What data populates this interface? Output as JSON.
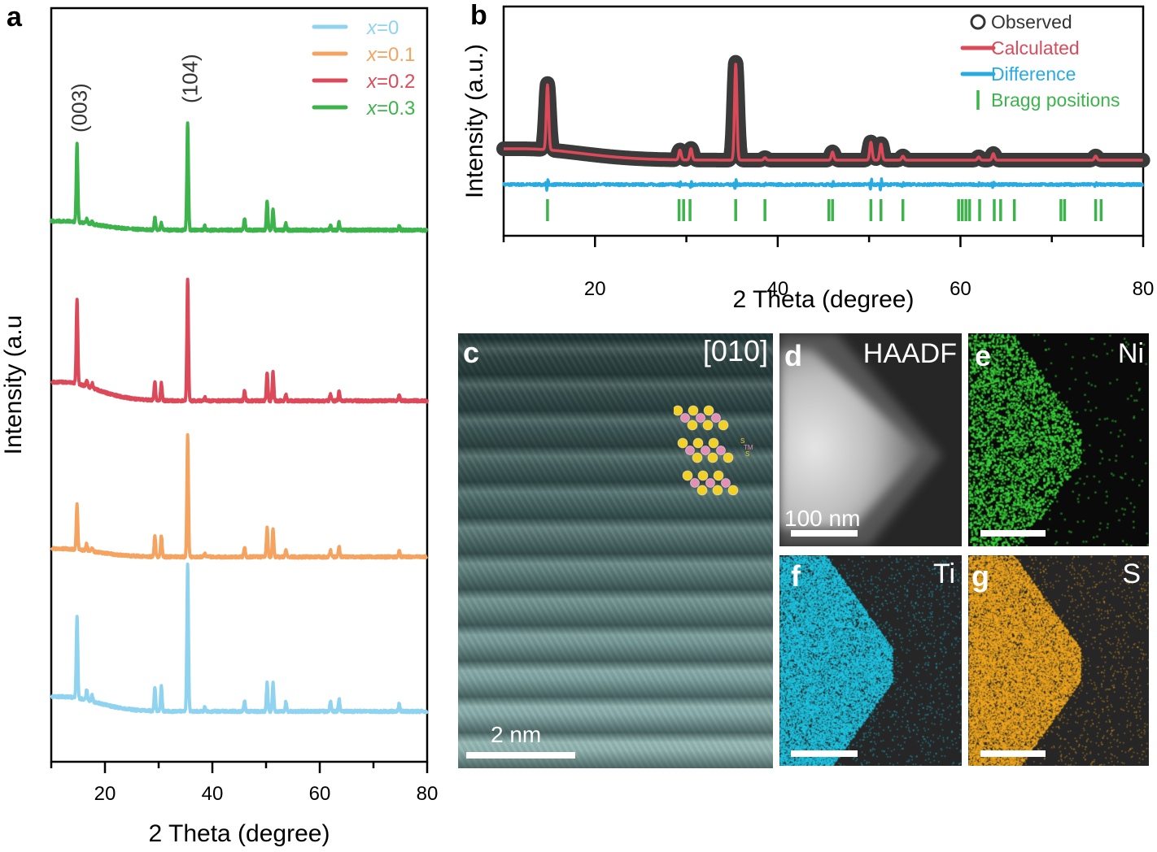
{
  "figure": {
    "panel_letters": {
      "a": "a",
      "b": "b",
      "c": "c",
      "d": "d",
      "e": "e",
      "f": "f",
      "g": "g"
    }
  },
  "chart_data": [
    {
      "id": "a",
      "type": "line",
      "title": "",
      "xlabel": "2 Theta (degree)",
      "ylabel": "Intensity (a.u",
      "xlim": [
        10,
        80
      ],
      "x_ticks": [
        20,
        40,
        60,
        80
      ],
      "x_minor_ticks": [
        10,
        30,
        50,
        70
      ],
      "y_ticks": [],
      "grid": false,
      "legend_position": "top-right",
      "annotations": [
        {
          "text": "(003)",
          "x": 14.8
        },
        {
          "text": "(104)",
          "x": 35.4
        }
      ],
      "peaks_2theta": [
        14.8,
        16.6,
        17.6,
        29.3,
        30.5,
        35.4,
        38.6,
        46.0,
        50.2,
        51.3,
        53.7,
        62.0,
        63.6,
        74.8
      ],
      "series": [
        {
          "name": "x=0",
          "prefix": "x",
          "suffix": "=0",
          "color": "#8fd3f0",
          "offset": 0,
          "baseline_start": 18,
          "baseline_end": 0,
          "peak_heights": [
            100,
            12,
            8,
            30,
            30,
            180,
            5,
            12,
            35,
            35,
            12,
            12,
            15,
            9
          ]
        },
        {
          "name": "x=0.1",
          "prefix": "x",
          "suffix": "=0.1",
          "color": "#f4a460",
          "offset": 190,
          "baseline_start": 10,
          "baseline_end": 0,
          "peak_heights": [
            55,
            8,
            4,
            26,
            26,
            150,
            4,
            12,
            35,
            35,
            8,
            8,
            13,
            7
          ]
        },
        {
          "name": "x=0.2",
          "prefix": "x",
          "suffix": "=0.2",
          "color": "#dc4a5a",
          "offset": 382,
          "baseline_start": 23,
          "baseline_end": 0,
          "peak_heights": [
            105,
            8,
            6,
            22,
            22,
            150,
            4,
            12,
            35,
            35,
            8,
            8,
            12,
            7
          ]
        },
        {
          "name": "x=0.3",
          "prefix": "x",
          "suffix": "=0.3",
          "color": "#3cb44b",
          "offset": 592,
          "baseline_start": 11,
          "baseline_end": 0,
          "peak_heights": [
            97,
            5,
            3,
            15,
            8,
            133,
            5,
            14,
            36,
            26,
            8,
            5,
            9,
            6
          ]
        }
      ]
    },
    {
      "id": "b",
      "type": "line",
      "title": "",
      "xlabel": "2 Theta (degree)",
      "ylabel": "Intensity (a.u.)",
      "xlim": [
        10,
        80
      ],
      "x_ticks": [
        20,
        40,
        60,
        80
      ],
      "x_minor_ticks": [
        10,
        30,
        50,
        70
      ],
      "y_ticks": [],
      "grid": false,
      "legend_position": "top-right",
      "legend": [
        {
          "label": "Observed",
          "kind": "circle",
          "color": "#333333"
        },
        {
          "label": "Calculated",
          "kind": "line",
          "color": "#dc4a5a"
        },
        {
          "label": "Difference",
          "kind": "line",
          "color": "#29abe2"
        },
        {
          "label": "Bragg positions",
          "kind": "tick",
          "color": "#3cb44b"
        }
      ],
      "baseline_start": 14,
      "baseline_end": 0,
      "peaks_2theta": [
        14.8,
        29.3,
        30.5,
        35.4,
        38.6,
        46.0,
        50.2,
        51.3,
        53.7,
        62.0,
        63.6,
        74.8
      ],
      "peak_heights": [
        80,
        12,
        14,
        118,
        3,
        10,
        22,
        20,
        5,
        4,
        8,
        5
      ],
      "bragg_positions": [
        14.8,
        29.2,
        29.7,
        30.4,
        35.4,
        38.6,
        45.6,
        46.0,
        50.2,
        51.3,
        53.7,
        59.8,
        60.2,
        60.6,
        61.0,
        62.1,
        63.7,
        64.4,
        65.9,
        71.0,
        71.4,
        74.8,
        75.4
      ]
    }
  ],
  "panel_c": {
    "zone_axis": "[010]",
    "scale_label": "2 nm",
    "schematic_labels": {
      "top": "S",
      "middle": "TM",
      "bottom": "S"
    },
    "colors": {
      "s_atom": "#f2d027",
      "tm_atom": "#e58fb4"
    }
  },
  "panel_d": {
    "label": "HAADF",
    "scale_label": "100 nm"
  },
  "panel_e": {
    "label": "Ni",
    "color": "#39d339"
  },
  "panel_f": {
    "label": "Ti",
    "color": "#1ec8e6"
  },
  "panel_g": {
    "label": "S",
    "color": "#f2a81d"
  }
}
